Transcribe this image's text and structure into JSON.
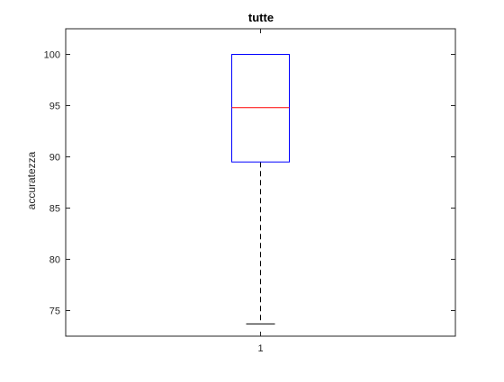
{
  "chart_data": {
    "type": "box",
    "title": "tutte",
    "xlabel": "",
    "ylabel": "accuratezza",
    "categories": [
      "1"
    ],
    "ylim": [
      72.5,
      102.5
    ],
    "yticks": [
      "75",
      "80",
      "85",
      "90",
      "95",
      "100"
    ],
    "boxes": [
      {
        "category": "1",
        "whisker_low": 73.7,
        "q1": 89.5,
        "median": 94.8,
        "q3": 100,
        "whisker_high": 100
      }
    ],
    "colors": {
      "box": "#0000ff",
      "median": "#ff0000",
      "whisker": "#000000",
      "axes": "#262626"
    },
    "grid": false
  }
}
